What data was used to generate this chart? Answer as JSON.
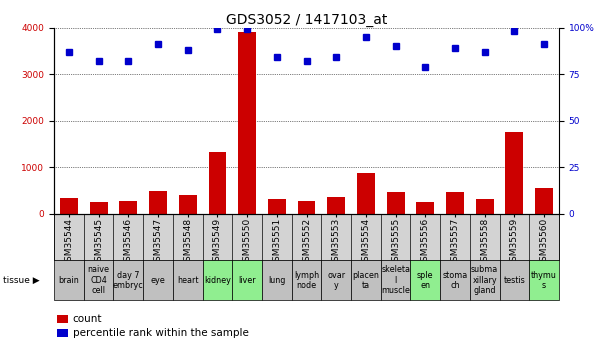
{
  "title": "GDS3052 / 1417103_at",
  "gsm_labels": [
    "GSM35544",
    "GSM35545",
    "GSM35546",
    "GSM35547",
    "GSM35548",
    "GSM35549",
    "GSM35550",
    "GSM35551",
    "GSM35552",
    "GSM35553",
    "GSM35554",
    "GSM35555",
    "GSM35556",
    "GSM35557",
    "GSM35558",
    "GSM35559",
    "GSM35560"
  ],
  "tissue_labels": [
    "brain",
    "naive\nCD4\ncell",
    "day 7\nembryc",
    "eye",
    "heart",
    "kidney",
    "liver",
    "lung",
    "lymph\nnode",
    "ovar\ny",
    "placen\nta",
    "skeleta\nl\nmuscle",
    "sple\nen",
    "stoma\nch",
    "subma\nxillary\ngland",
    "testis",
    "thymu\ns"
  ],
  "tissue_colors": [
    "#c0c0c0",
    "#c0c0c0",
    "#c0c0c0",
    "#c0c0c0",
    "#c0c0c0",
    "#90ee90",
    "#90ee90",
    "#c0c0c0",
    "#c0c0c0",
    "#c0c0c0",
    "#c0c0c0",
    "#c0c0c0",
    "#90ee90",
    "#c0c0c0",
    "#c0c0c0",
    "#c0c0c0",
    "#90ee90"
  ],
  "counts": [
    350,
    250,
    270,
    490,
    400,
    1320,
    3900,
    330,
    280,
    370,
    880,
    480,
    260,
    460,
    310,
    1750,
    560
  ],
  "percentiles": [
    87,
    82,
    82,
    91,
    88,
    99,
    99,
    84,
    82,
    84,
    95,
    90,
    79,
    89,
    87,
    98,
    91
  ],
  "bar_color": "#cc0000",
  "dot_color": "#0000cc",
  "left_ylim": [
    0,
    4000
  ],
  "right_ylim": [
    0,
    100
  ],
  "left_yticks": [
    0,
    1000,
    2000,
    3000,
    4000
  ],
  "right_yticks": [
    0,
    25,
    50,
    75,
    100
  ],
  "right_yticklabels": [
    "0",
    "25",
    "50",
    "75",
    "100%"
  ],
  "bg_color": "#ffffff",
  "grid_color": "#000000",
  "title_fontsize": 10,
  "tick_fontsize": 6.5,
  "tissue_fontsize": 5.8,
  "legend_fontsize": 7.5
}
